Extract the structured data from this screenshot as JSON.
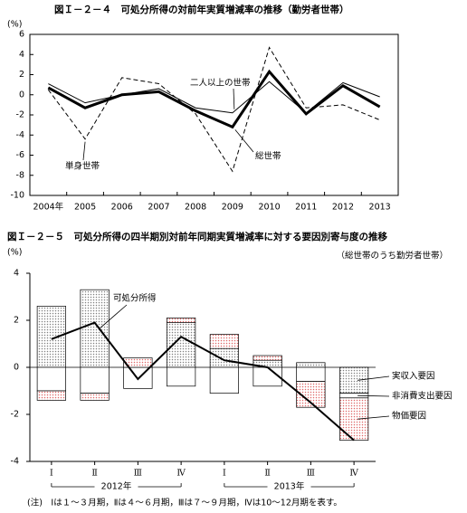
{
  "chart_data": [
    {
      "type": "line",
      "title": "図Ｉ－２－４　可処分所得の対前年実質増減率の推移（勤労者世帯）",
      "y_label": "(%)",
      "categories": [
        "2004年",
        "2005",
        "2006",
        "2007",
        "2008",
        "2009",
        "2010",
        "2011",
        "2012",
        "2013"
      ],
      "series": [
        {
          "name": "総世帯",
          "color": "#000000",
          "line_width": 3,
          "line_style": "solid",
          "values": [
            0.7,
            -1.3,
            0.0,
            0.3,
            -1.6,
            -3.2,
            2.3,
            -1.9,
            0.9,
            -1.2
          ]
        },
        {
          "name": "二人以上の世帯",
          "color": "#000000",
          "line_width": 1,
          "line_style": "solid",
          "values": [
            1.1,
            -0.8,
            0.0,
            0.6,
            -1.3,
            -1.8,
            1.3,
            -1.8,
            1.2,
            -0.2
          ]
        },
        {
          "name": "単身世帯",
          "color": "#000000",
          "line_width": 1,
          "line_style": "dashed",
          "values": [
            0.5,
            -4.4,
            1.7,
            1.1,
            -1.9,
            -7.6,
            4.7,
            -1.3,
            -1.0,
            -2.5
          ]
        }
      ],
      "ylim": [
        -10,
        6
      ],
      "yticks": [
        -10,
        -8,
        -6,
        -4,
        -2,
        0,
        2,
        4,
        6
      ]
    },
    {
      "type": "stacked_bar_line",
      "title": "図Ｉ－２－５　可処分所得の四半期別対前年同期実質増減率に対する要因別寄与度の推移",
      "subtitle": "（総世帯のうち勤労者世帯）",
      "y_label": "(%)",
      "groups": [
        {
          "name": "2012年",
          "categories": [
            "Ⅰ",
            "Ⅱ",
            "Ⅲ",
            "Ⅳ"
          ]
        },
        {
          "name": "2013年",
          "categories": [
            "Ⅰ",
            "Ⅱ",
            "Ⅲ",
            "Ⅳ"
          ]
        }
      ],
      "series": [
        {
          "name": "実収入要因",
          "kind": "bar",
          "color": "#808080",
          "values": [
            2.6,
            3.3,
            0.0,
            1.9,
            0.8,
            0.3,
            0.2,
            -1.1
          ]
        },
        {
          "name": "非消費支出要因",
          "kind": "bar",
          "color": "#ffffff",
          "values": [
            -1.0,
            -1.1,
            -0.9,
            -0.8,
            -1.1,
            -0.8,
            -0.6,
            -0.2
          ]
        },
        {
          "name": "物価要因",
          "kind": "bar",
          "color": "#e06666",
          "values": [
            -0.4,
            -0.3,
            0.4,
            0.2,
            0.6,
            0.2,
            -1.1,
            -1.8
          ]
        },
        {
          "name": "可処分所得",
          "kind": "line",
          "color": "#000000",
          "values": [
            1.2,
            1.9,
            -0.5,
            1.3,
            0.3,
            0.0,
            -1.5,
            -3.1
          ]
        }
      ],
      "ylim": [
        -4,
        4
      ],
      "yticks": [
        -4,
        -2,
        0,
        2,
        4
      ],
      "note": "(注)　Ⅰは１～３月期，Ⅱは４～６月期，Ⅲは７～９月期，Ⅳは10～12月期を表す。"
    }
  ]
}
